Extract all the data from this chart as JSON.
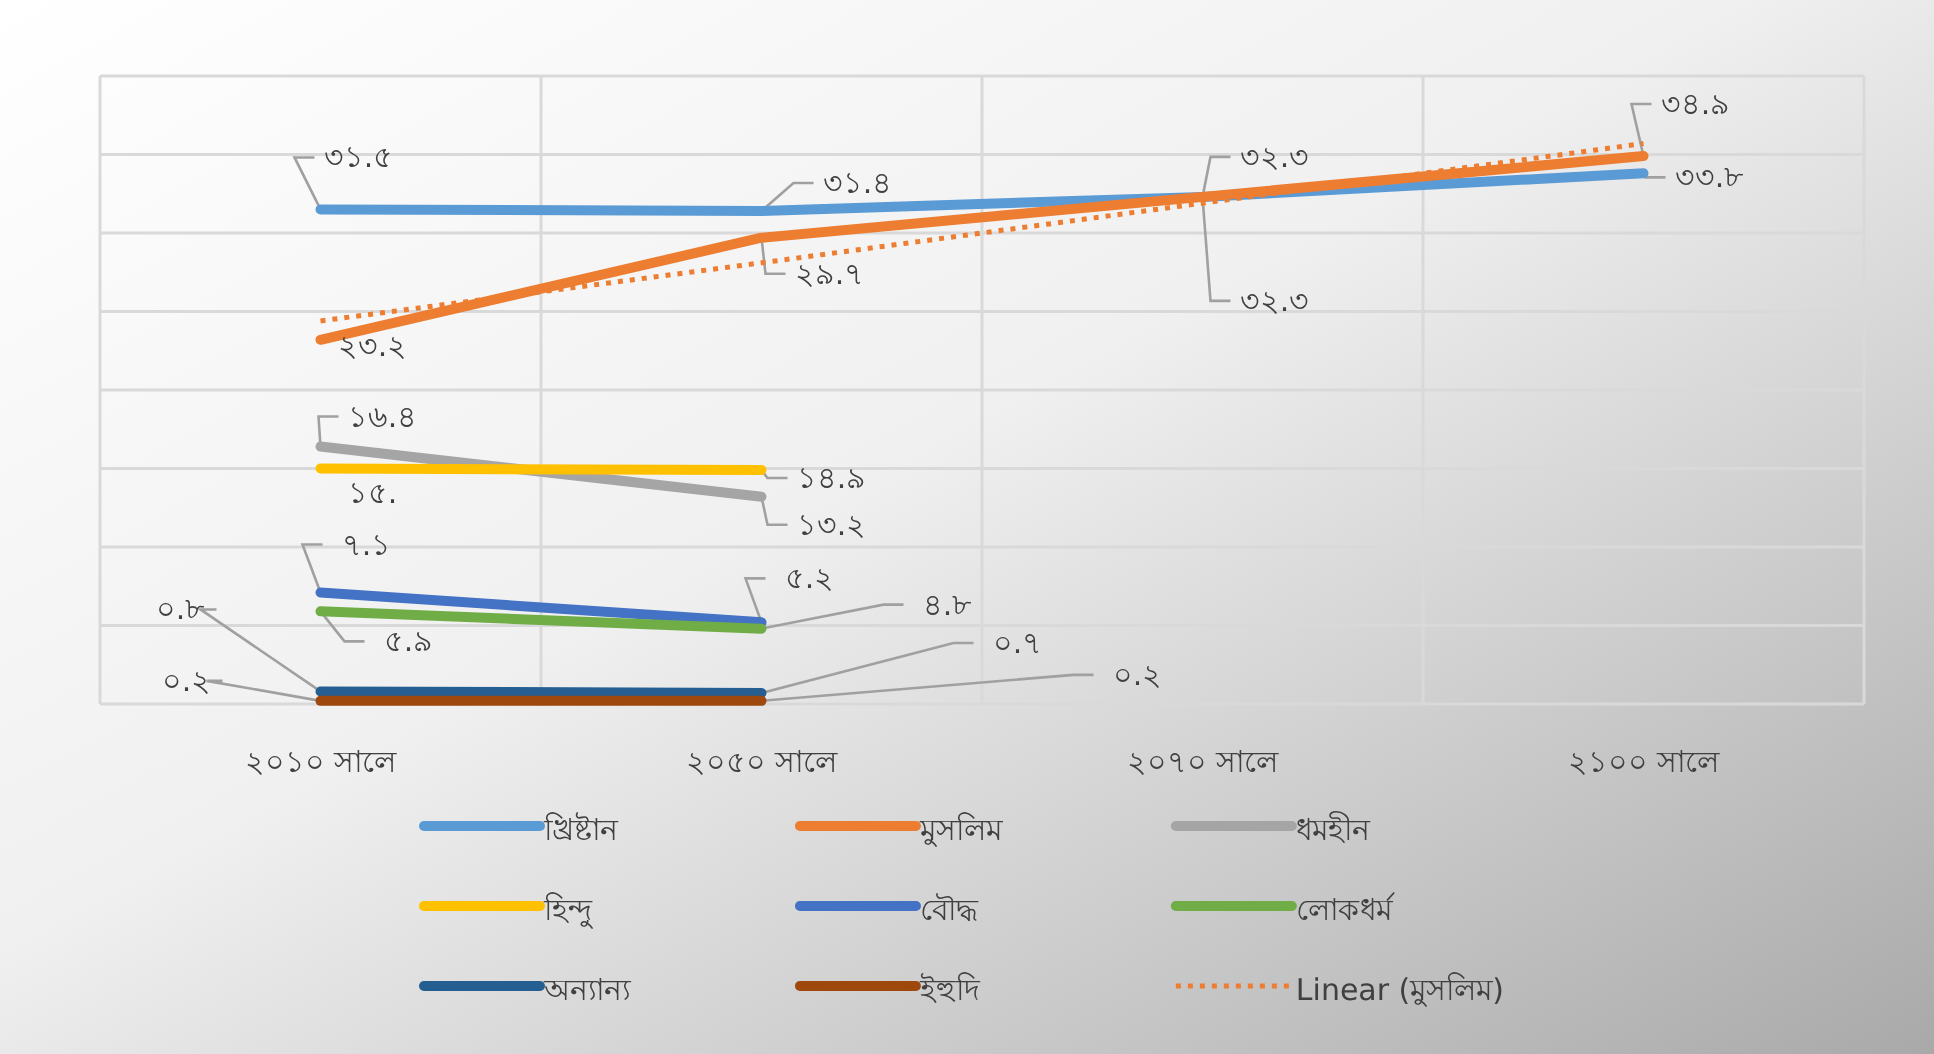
{
  "chart_data": {
    "type": "line",
    "categories": [
      "২০১০ সালে",
      "২০৫০ সালে",
      "২০৭০ সালে",
      "২১০০ সালে"
    ],
    "ylim": [
      0,
      40
    ],
    "yticks": [
      {
        "value": 0,
        "label": null
      },
      {
        "value": 5,
        "label": null
      },
      {
        "value": 10,
        "label": null
      },
      {
        "value": 15,
        "label": null
      },
      {
        "value": 20,
        "label": null
      },
      {
        "value": 25,
        "label": null
      },
      {
        "value": 30,
        "label": null
      },
      {
        "value": 35,
        "label": null
      },
      {
        "value": 40,
        "label": null
      }
    ],
    "tick_labels": "x",
    "grid": true,
    "legend": "bottom",
    "marker": "none",
    "series": [
      {
        "name": "খ্রিষ্টান",
        "color": "#5b9bd5",
        "values": [
          31.5,
          31.4,
          32.3,
          33.8
        ],
        "value_labels": [
          "৩১.৫",
          "৩১.৪",
          "৩২.৩",
          "৩৩.৮"
        ]
      },
      {
        "name": "মুসলিম",
        "color": "#ed7d31",
        "values": [
          23.2,
          29.7,
          32.3,
          34.9
        ],
        "value_labels": [
          "২৩.২",
          "২৯.৭",
          "৩২.৩",
          "৩৪.৯"
        ]
      },
      {
        "name": "ধমহীন",
        "color": "#a5a5a5",
        "values": [
          16.4,
          13.2,
          null,
          null
        ],
        "value_labels": [
          "১৬.৪",
          "১৩.২",
          null,
          null
        ]
      },
      {
        "name": "হিন্দু",
        "color": "#ffc000",
        "values": [
          15,
          14.9,
          null,
          null
        ],
        "value_labels": [
          "১৫.",
          "১৪.৯",
          null,
          null
        ]
      },
      {
        "name": "বৌদ্ধ",
        "color": "#4472c4",
        "values": [
          7.1,
          5.2,
          null,
          null
        ],
        "value_labels": [
          "৭.১",
          "৫.২",
          null,
          null
        ]
      },
      {
        "name": "লোকধর্ম",
        "color": "#70ad47",
        "values": [
          5.9,
          4.8,
          null,
          null
        ],
        "value_labels": [
          "৫.৯",
          "৪.৮",
          null,
          null
        ]
      },
      {
        "name": "অন্যান্য",
        "color": "#255e91",
        "values": [
          0.8,
          0.7,
          null,
          null
        ],
        "value_labels": [
          "০.৮",
          "০.৭",
          null,
          null
        ]
      },
      {
        "name": "ইহুদি",
        "color": "#9e480e",
        "values": [
          0.2,
          0.2,
          null,
          null
        ],
        "value_labels": [
          "০.২",
          "০.২",
          null,
          null
        ]
      },
      {
        "name": "Linear  (মুসলিম)",
        "color": "#ed7d31",
        "line_style": "dotted",
        "values": [
          24.4,
          28.1,
          31.9,
          35.7
        ]
      }
    ]
  }
}
